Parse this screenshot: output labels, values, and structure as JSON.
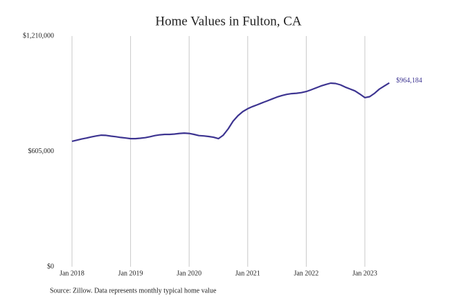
{
  "chart_data": {
    "type": "line",
    "title": "Home Values in Fulton, CA",
    "source": "Source: Zillow. Data represents monthly typical home value",
    "x": [
      "2018-01",
      "2018-02",
      "2018-03",
      "2018-04",
      "2018-05",
      "2018-06",
      "2018-07",
      "2018-08",
      "2018-09",
      "2018-10",
      "2018-11",
      "2018-12",
      "2019-01",
      "2019-02",
      "2019-03",
      "2019-04",
      "2019-05",
      "2019-06",
      "2019-07",
      "2019-08",
      "2019-09",
      "2019-10",
      "2019-11",
      "2019-12",
      "2020-01",
      "2020-02",
      "2020-03",
      "2020-04",
      "2020-05",
      "2020-06",
      "2020-07",
      "2020-08",
      "2020-09",
      "2020-10",
      "2020-11",
      "2020-12",
      "2021-01",
      "2021-02",
      "2021-03",
      "2021-04",
      "2021-05",
      "2021-06",
      "2021-07",
      "2021-08",
      "2021-09",
      "2021-10",
      "2021-11",
      "2021-12",
      "2022-01",
      "2022-02",
      "2022-03",
      "2022-04",
      "2022-05",
      "2022-06",
      "2022-07",
      "2022-08",
      "2022-09",
      "2022-10",
      "2022-11",
      "2022-12",
      "2023-01",
      "2023-02",
      "2023-03",
      "2023-04",
      "2023-05",
      "2023-06"
    ],
    "series": [
      {
        "name": "Typical home value",
        "color": "#3d3491",
        "values": [
          658000,
          664000,
          670000,
          675000,
          681000,
          686000,
          690000,
          689000,
          685000,
          682000,
          678000,
          675000,
          672000,
          672000,
          674000,
          677000,
          682000,
          688000,
          692000,
          694000,
          694000,
          696000,
          699000,
          701000,
          699000,
          694000,
          688000,
          686000,
          683000,
          679000,
          672000,
          690000,
          723000,
          763000,
          792000,
          814000,
          829000,
          840000,
          850000,
          860000,
          870000,
          880000,
          890000,
          898000,
          904000,
          908000,
          910000,
          913000,
          919000,
          928000,
          938000,
          948000,
          956000,
          963000,
          961000,
          954000,
          942000,
          932000,
          922000,
          905000,
          887000,
          892000,
          910000,
          932000,
          948000,
          964184
        ],
        "value_labels": [
          null,
          null,
          null,
          null,
          null,
          null,
          null,
          null,
          null,
          null,
          null,
          null,
          null,
          null,
          null,
          null,
          null,
          null,
          null,
          null,
          null,
          null,
          null,
          null,
          null,
          null,
          null,
          null,
          null,
          null,
          null,
          null,
          null,
          null,
          null,
          null,
          null,
          null,
          null,
          null,
          null,
          null,
          null,
          null,
          null,
          null,
          null,
          null,
          null,
          null,
          null,
          null,
          null,
          null,
          null,
          null,
          null,
          null,
          null,
          null,
          null,
          null,
          null,
          null,
          null,
          "$964,184"
        ]
      }
    ],
    "ylim": [
      0,
      1210000
    ],
    "yticks": [
      {
        "value": 0,
        "label": "$0"
      },
      {
        "value": 605000,
        "label": "$605,000"
      },
      {
        "value": 1210000,
        "label": "$1,210,000"
      }
    ],
    "xticks": [
      {
        "value": "2018-01",
        "label": "Jan 2018"
      },
      {
        "value": "2019-01",
        "label": "Jan 2019"
      },
      {
        "value": "2020-01",
        "label": "Jan 2020"
      },
      {
        "value": "2021-01",
        "label": "Jan 2021"
      },
      {
        "value": "2022-01",
        "label": "Jan 2022"
      },
      {
        "value": "2023-01",
        "label": "Jan 2023"
      }
    ],
    "grid": true
  }
}
